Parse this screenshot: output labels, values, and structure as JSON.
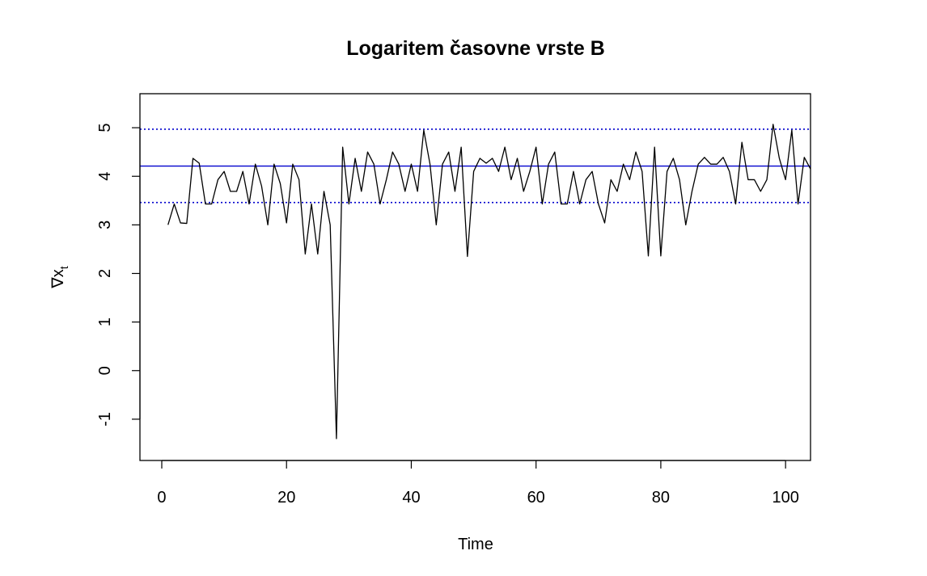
{
  "chart_data": {
    "type": "line",
    "title": "Logaritem časovne vrste B",
    "xlabel": "Time",
    "ylabel": "∇x",
    "ylabel_subscript": "t",
    "xlim": [
      -3.5,
      104
    ],
    "ylim": [
      -1.85,
      5.7
    ],
    "xticks": [
      0,
      20,
      40,
      60,
      80,
      100
    ],
    "yticks": [
      -1,
      0,
      1,
      2,
      3,
      4,
      5
    ],
    "grid": false,
    "series": [
      {
        "color": "#000000",
        "x": [
          1,
          2,
          3,
          4,
          5,
          6,
          7,
          8,
          9,
          10,
          11,
          12,
          13,
          14,
          15,
          16,
          17,
          18,
          19,
          20,
          21,
          22,
          23,
          24,
          25,
          26,
          27,
          28,
          29,
          30,
          31,
          32,
          33,
          34,
          35,
          36,
          37,
          38,
          39,
          40,
          41,
          42,
          43,
          44,
          45,
          46,
          47,
          48,
          49,
          50,
          51,
          52,
          53,
          54,
          55,
          56,
          57,
          58,
          59,
          60,
          61,
          62,
          63,
          64,
          65,
          66,
          67,
          68,
          69,
          70,
          71,
          72,
          73,
          74,
          75,
          76,
          77,
          78,
          79,
          80,
          81,
          82,
          83,
          84,
          85,
          86,
          87,
          88,
          89,
          90,
          91,
          92,
          93,
          94,
          95,
          96,
          97,
          98,
          99,
          100,
          101,
          102,
          103,
          104
        ],
        "y": [
          3.0,
          3.43,
          3.04,
          3.03,
          4.37,
          4.27,
          3.43,
          3.43,
          3.93,
          4.1,
          3.69,
          3.69,
          4.1,
          3.43,
          4.25,
          3.8,
          3.0,
          4.25,
          3.85,
          3.04,
          4.25,
          3.93,
          2.4,
          3.43,
          2.4,
          3.69,
          3.0,
          -1.4,
          4.6,
          3.43,
          4.37,
          3.69,
          4.5,
          4.25,
          3.43,
          3.93,
          4.5,
          4.25,
          3.69,
          4.25,
          3.69,
          4.95,
          4.25,
          3.0,
          4.25,
          4.5,
          3.69,
          4.6,
          2.35,
          4.1,
          4.37,
          4.27,
          4.37,
          4.1,
          4.6,
          3.93,
          4.37,
          3.69,
          4.1,
          4.6,
          3.43,
          4.25,
          4.5,
          3.43,
          3.43,
          4.1,
          3.43,
          3.93,
          4.1,
          3.43,
          3.04,
          3.93,
          3.69,
          4.25,
          3.93,
          4.5,
          4.1,
          2.36,
          4.6,
          2.36,
          4.1,
          4.37,
          3.93,
          3.0,
          3.69,
          4.25,
          4.39,
          4.25,
          4.25,
          4.39,
          4.1,
          3.43,
          4.7,
          3.93,
          3.93,
          3.69,
          3.93,
          5.07,
          4.37,
          3.93,
          4.95,
          3.43,
          4.39,
          4.15
        ]
      }
    ],
    "hlines": [
      {
        "y": 4.21,
        "style": "solid",
        "color": "#0000cd"
      },
      {
        "y": 4.97,
        "style": "dotted",
        "color": "#0000cd"
      },
      {
        "y": 3.46,
        "style": "dotted",
        "color": "#0000cd"
      }
    ]
  }
}
